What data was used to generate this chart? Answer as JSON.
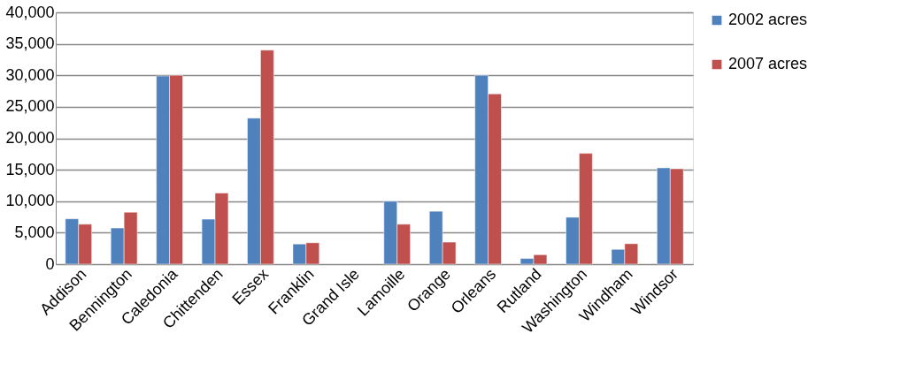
{
  "chart_data": {
    "type": "bar",
    "categories": [
      "Addison",
      "Bennington",
      "Caledonia",
      "Chittenden",
      "Essex",
      "Franklin",
      "Grand Isle",
      "Lamoille",
      "Orange",
      "Orleans",
      "Rutland",
      "Washington",
      "Windham",
      "Windsor"
    ],
    "series": [
      {
        "name": "2002 acres",
        "color": "#4f81bd",
        "values": [
          7200,
          5750,
          29900,
          7150,
          23200,
          3200,
          null,
          10000,
          8400,
          30000,
          900,
          7450,
          2350,
          15300
        ]
      },
      {
        "name": "2007 acres",
        "color": "#c0504d",
        "values": [
          6350,
          8250,
          30000,
          11300,
          34000,
          3400,
          null,
          6350,
          3500,
          27050,
          1500,
          17600,
          3250,
          15150
        ]
      }
    ],
    "ylim": [
      0,
      40000
    ],
    "yticks": [
      {
        "value": 0,
        "label": "0"
      },
      {
        "value": 5000,
        "label": "5,000"
      },
      {
        "value": 10000,
        "label": "10,000"
      },
      {
        "value": 15000,
        "label": "15,000"
      },
      {
        "value": 20000,
        "label": "20,000"
      },
      {
        "value": 25000,
        "label": "25,000"
      },
      {
        "value": 30000,
        "label": "30,000"
      },
      {
        "value": 35000,
        "label": "35,000"
      },
      {
        "value": 40000,
        "label": "40,000"
      }
    ],
    "grid": "y",
    "legend": "right"
  }
}
